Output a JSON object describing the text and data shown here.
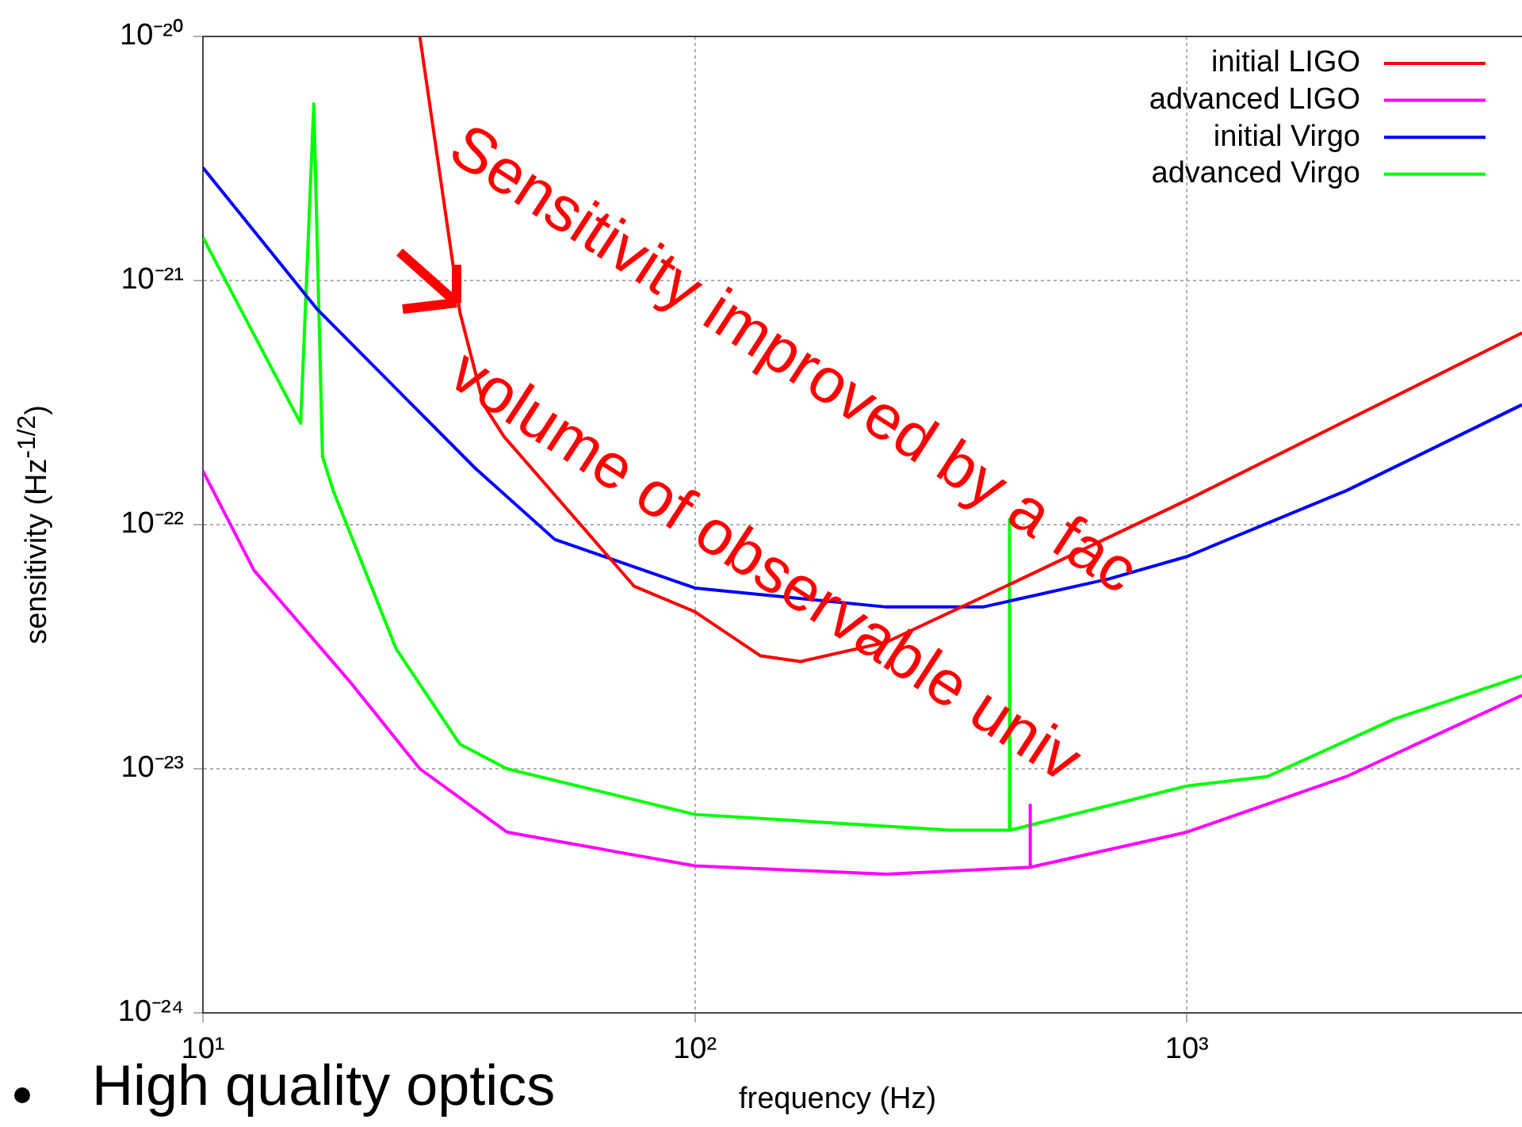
{
  "chart_data": {
    "type": "line",
    "xlabel": "frequency (Hz)",
    "ylabel": "sensitivity (Hz$^{-1/2}$)",
    "log": "xy",
    "grid": true,
    "legend": "top right",
    "marker": "none",
    "line_style": "solid",
    "xlim": [
      10,
      4800
    ],
    "xticks": [
      {
        "value": 10,
        "label": "10¹"
      },
      {
        "value": 100,
        "label": "10²"
      },
      {
        "value": 1000,
        "label": "10³"
      }
    ],
    "ylim": [
      1e-24,
      1e-20
    ],
    "yticks": [
      {
        "value": 1e-24,
        "label": "10⁻²⁴"
      },
      {
        "value": 1e-23,
        "label": "10⁻²³"
      },
      {
        "value": 1e-22,
        "label": "10⁻²²"
      },
      {
        "value": 1e-21,
        "label": "10⁻²¹"
      },
      {
        "value": 1e-20,
        "label": "10⁻²⁰"
      }
    ],
    "series": [
      {
        "name": "initial LIGO",
        "color": "#ff0000",
        "x": [
          27.6,
          33.3,
          37.2,
          40.9,
          75.2,
          100,
          136,
          164,
          245,
          445,
          1000,
          4800
        ],
        "values": [
          1e-20,
          7.4e-22,
          3.1e-22,
          2.3e-22,
          5.6e-23,
          4.4e-23,
          2.9e-23,
          2.75e-23,
          3.3e-23,
          5.8e-23,
          1.26e-22,
          6.1e-22
        ]
      },
      {
        "name": "advanced LIGO",
        "color": "#ff00ff",
        "x": [
          10,
          12.7,
          19.8,
          27.6,
          41.5,
          100,
          245,
          479,
          480,
          481,
          1000,
          2113,
          4800
        ],
        "values": [
          1.66e-22,
          6.5e-23,
          2.3e-23,
          1e-23,
          5.5e-24,
          4e-24,
          3.7e-24,
          3.95e-24,
          7.1e-24,
          3.95e-24,
          5.5e-24,
          9.3e-24,
          2e-23
        ]
      },
      {
        "name": "initial Virgo",
        "color": "#0000ff",
        "x": [
          10,
          17.1,
          35.8,
          51.9,
          100,
          245,
          385,
          695,
          1000,
          2113,
          4800
        ],
        "values": [
          2.9e-21,
          7.6e-22,
          1.7e-22,
          8.7e-23,
          5.5e-23,
          4.6e-23,
          4.6e-23,
          6e-23,
          7.4e-23,
          1.38e-22,
          3.1e-22
        ]
      },
      {
        "name": "advanced Virgo",
        "color": "#00ff00",
        "x": [
          10,
          15.8,
          16.8,
          17.5,
          18.4,
          24.7,
          33.3,
          41.5,
          100,
          331,
          435,
          436,
          437,
          1000,
          1459,
          2643,
          4800
        ],
        "values": [
          1.5e-21,
          2.6e-22,
          5.3e-21,
          1.9e-22,
          1.38e-22,
          3.1e-23,
          1.26e-23,
          1e-23,
          6.5e-24,
          5.6e-24,
          5.6e-24,
          1.05e-22,
          5.6e-24,
          8.5e-24,
          9.3e-24,
          1.6e-23,
          2.4e-23
        ]
      }
    ],
    "annotations": [
      "Sensitivity improved by a fac",
      "volume of observable univ",
      "High quality optics"
    ]
  }
}
